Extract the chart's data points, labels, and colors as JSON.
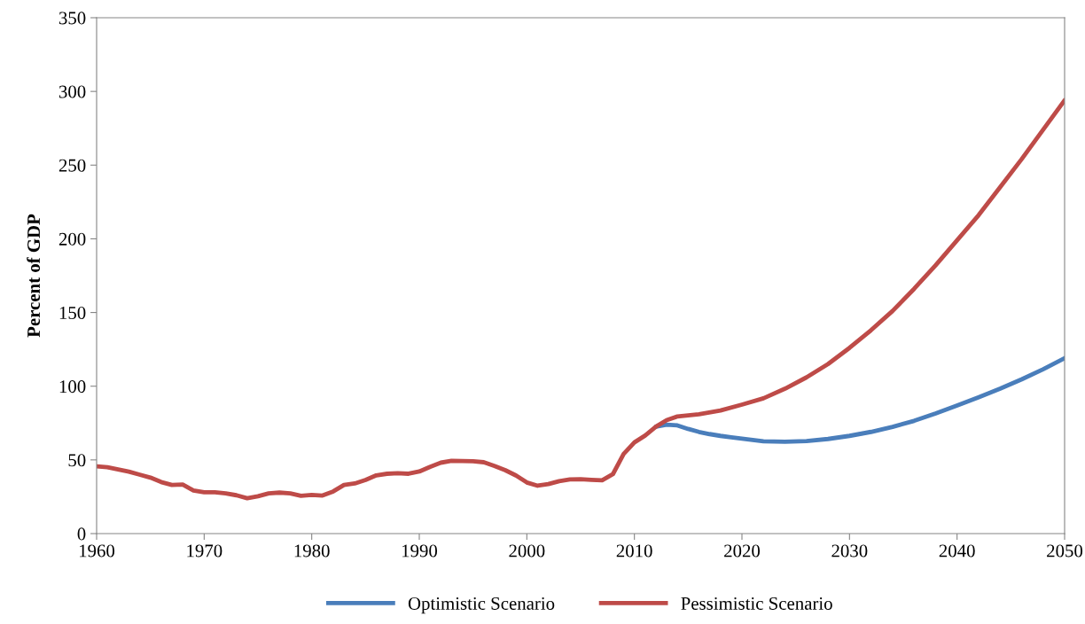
{
  "chart_data": {
    "type": "line",
    "ylabel": "Percent of GDP",
    "xlim": [
      1960,
      2050
    ],
    "xticks": [
      1960,
      1970,
      1980,
      1990,
      2000,
      2010,
      2020,
      2030,
      2040,
      2050
    ],
    "ylim": [
      0,
      350
    ],
    "yticks": [
      0,
      50,
      100,
      150,
      200,
      250,
      300,
      350
    ],
    "grid": false,
    "legend": "bottom",
    "marker": "none",
    "line_style": "solid",
    "series": [
      {
        "name": "Optimistic Scenario",
        "color": "#4a7ebb",
        "x": [
          2012,
          2013,
          2014,
          2015,
          2016,
          2017,
          2018,
          2019,
          2020,
          2022,
          2024,
          2026,
          2028,
          2030,
          2032,
          2034,
          2036,
          2038,
          2040,
          2042,
          2044,
          2046,
          2048,
          2050
        ],
        "values": [
          72.5,
          73.9,
          73.4,
          71.0,
          69.0,
          67.5,
          66.3,
          65.3,
          64.4,
          62.6,
          62.3,
          62.8,
          64.2,
          66.3,
          69.0,
          72.4,
          76.5,
          81.5,
          86.9,
          92.5,
          98.3,
          104.6,
          111.5,
          119.0
        ]
      },
      {
        "name": "Pessimistic Scenario",
        "color": "#be4b48",
        "x": [
          1960,
          1961,
          1962,
          1963,
          1964,
          1965,
          1966,
          1967,
          1968,
          1969,
          1970,
          1971,
          1972,
          1973,
          1974,
          1975,
          1976,
          1977,
          1978,
          1979,
          1980,
          1981,
          1982,
          1983,
          1984,
          1985,
          1986,
          1987,
          1988,
          1989,
          1990,
          1991,
          1992,
          1993,
          1994,
          1995,
          1996,
          1997,
          1998,
          1999,
          2000,
          2001,
          2002,
          2003,
          2004,
          2005,
          2006,
          2007,
          2008,
          2009,
          2010,
          2011,
          2012,
          2013,
          2014,
          2015,
          2016,
          2018,
          2020,
          2022,
          2024,
          2026,
          2028,
          2030,
          2032,
          2034,
          2036,
          2038,
          2040,
          2042,
          2044,
          2046,
          2048,
          2050
        ],
        "values": [
          45.6,
          45.0,
          43.5,
          42.0,
          40.0,
          38.0,
          35.0,
          33.0,
          33.3,
          29.3,
          28.0,
          28.0,
          27.3,
          26.0,
          24.0,
          25.3,
          27.3,
          27.8,
          27.3,
          25.6,
          26.2,
          25.8,
          28.6,
          33.0,
          34.0,
          36.4,
          39.5,
          40.6,
          41.0,
          40.6,
          42.1,
          45.3,
          48.1,
          49.4,
          49.2,
          49.1,
          48.4,
          45.9,
          43.0,
          39.4,
          34.7,
          32.5,
          33.6,
          35.6,
          36.8,
          36.9,
          36.5,
          36.2,
          40.3,
          54.0,
          61.9,
          66.5,
          72.5,
          77.0,
          79.5,
          80.2,
          81.0,
          83.5,
          87.5,
          91.8,
          98.3,
          106,
          115,
          126,
          138,
          151,
          166,
          182,
          199,
          216,
          235,
          254,
          274,
          294
        ]
      }
    ]
  }
}
